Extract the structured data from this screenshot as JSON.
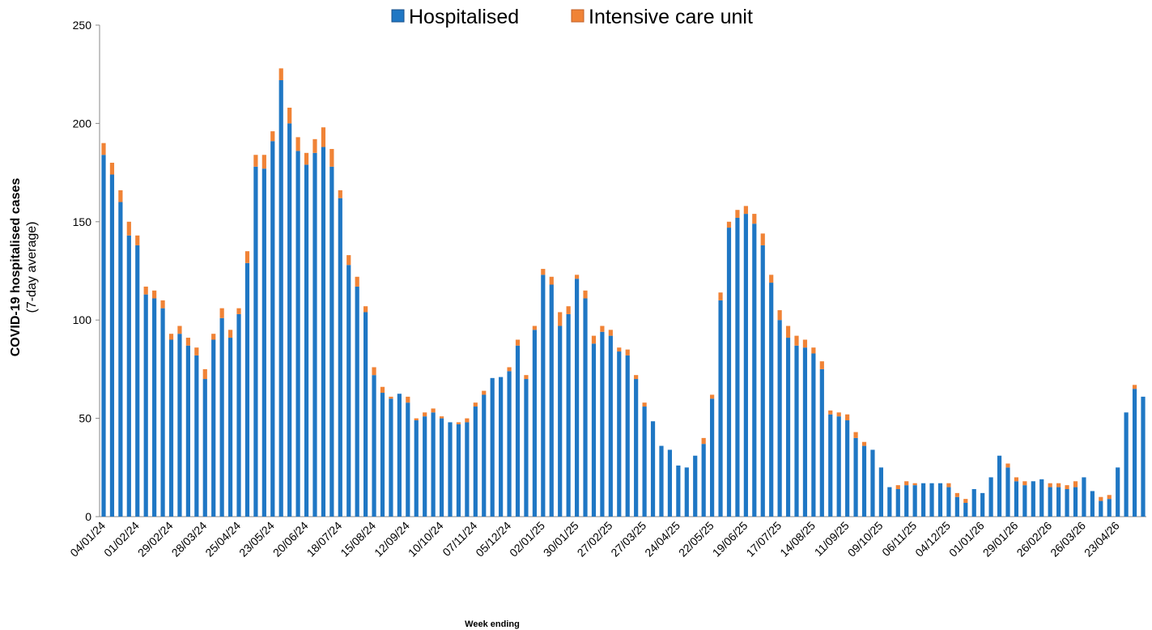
{
  "chart_data": {
    "type": "stacked_bar",
    "y_label": "COVID-19 hospitalised cases",
    "y_label_sub": "(7-day average)",
    "x_label": "Week ending",
    "categories": [
      "04/01/24",
      null,
      null,
      null,
      "01/02/24",
      null,
      null,
      null,
      "29/02/24",
      null,
      null,
      null,
      "28/03/24",
      null,
      null,
      null,
      "25/04/24",
      null,
      null,
      null,
      "23/05/24",
      null,
      null,
      null,
      "20/06/24",
      null,
      null,
      null,
      "18/07/24",
      null,
      null,
      null,
      "15/08/24",
      null,
      null,
      null,
      "12/09/24",
      null,
      null,
      null,
      "10/10/24",
      null,
      null,
      null,
      "07/11/24",
      null,
      null,
      null,
      "05/12/24",
      null,
      null,
      null,
      "02/01/25",
      null,
      null,
      null,
      "30/01/25",
      null,
      null,
      null,
      "27/02/25",
      null,
      null,
      null,
      "27/03/25",
      null,
      null,
      null,
      "24/04/25",
      null,
      null,
      null,
      "22/05/25",
      null,
      null,
      null,
      "19/06/25",
      null,
      null,
      null,
      "17/07/25",
      null,
      null,
      null,
      "14/08/25",
      null,
      null,
      null,
      "11/09/25",
      null,
      null,
      null,
      "09/10/25",
      null,
      null,
      null,
      "06/11/25",
      null,
      null,
      null,
      "04/12/25",
      null,
      null,
      null,
      "01/01/26",
      null,
      null,
      null,
      "29/01/26",
      null,
      null,
      null,
      "26/02/26",
      null,
      null,
      null,
      "26/03/26",
      null,
      null,
      null,
      "23/04/26",
      null,
      null,
      null
    ],
    "series": [
      {
        "name": "Hospitalised",
        "color": "#1f77c4",
        "values": [
          184,
          174,
          160,
          143,
          138,
          113,
          111,
          106,
          90,
          93,
          87,
          82,
          70,
          90,
          101,
          91,
          103,
          129,
          178,
          177,
          191,
          222,
          200,
          186,
          179,
          185,
          188,
          178,
          162,
          128,
          117,
          104,
          72,
          63,
          60,
          62.5,
          58,
          49,
          51,
          53,
          50,
          48,
          47,
          48,
          56,
          62,
          70.5,
          71,
          74,
          87,
          70,
          95,
          123,
          118,
          97,
          103,
          121,
          111,
          88,
          94,
          92,
          84,
          82,
          70,
          56,
          48.5,
          36,
          34,
          26,
          25,
          31,
          37,
          60,
          110,
          147,
          152,
          154,
          149,
          138,
          119,
          100,
          91,
          87,
          86,
          83,
          75,
          52,
          51,
          49,
          40,
          36,
          34,
          25,
          15,
          14,
          16,
          16,
          17,
          17,
          17,
          15,
          10,
          7,
          14,
          12,
          20,
          31,
          25,
          18,
          16,
          18,
          19,
          15,
          15,
          14,
          15,
          20,
          13,
          8,
          9,
          25,
          53,
          65,
          61
        ]
      },
      {
        "name": "Intensive care unit",
        "color": "#f08336",
        "values": [
          6,
          6,
          6,
          7,
          5,
          4,
          4,
          4,
          3,
          4,
          4,
          4,
          5,
          3,
          5,
          4,
          3,
          6,
          6,
          7,
          5,
          6,
          8,
          7,
          6,
          7,
          10,
          9,
          4,
          5,
          5,
          3,
          4,
          3,
          1,
          0,
          3,
          1,
          2,
          2,
          1,
          0,
          1,
          2,
          2,
          2,
          0,
          0,
          2,
          3,
          2,
          2,
          3,
          4,
          7,
          4,
          2,
          4,
          4,
          3,
          3,
          2,
          3,
          2,
          2,
          0,
          0,
          0,
          0,
          0,
          0,
          3,
          2,
          4,
          3,
          4,
          4,
          5,
          6,
          4,
          5,
          6,
          5,
          4,
          3,
          4,
          2,
          2,
          3,
          3,
          2,
          0,
          0,
          0,
          2,
          2,
          1,
          0,
          0,
          0,
          2,
          2,
          2,
          0,
          0,
          0,
          0,
          2,
          2,
          2,
          0,
          0,
          2,
          2,
          2,
          3,
          0,
          0,
          2,
          2,
          0,
          0,
          2,
          0
        ]
      }
    ],
    "ylim": [
      0,
      250
    ],
    "yticks": [
      0,
      50,
      100,
      150,
      200,
      250
    ],
    "grid": false,
    "legend": "top"
  }
}
